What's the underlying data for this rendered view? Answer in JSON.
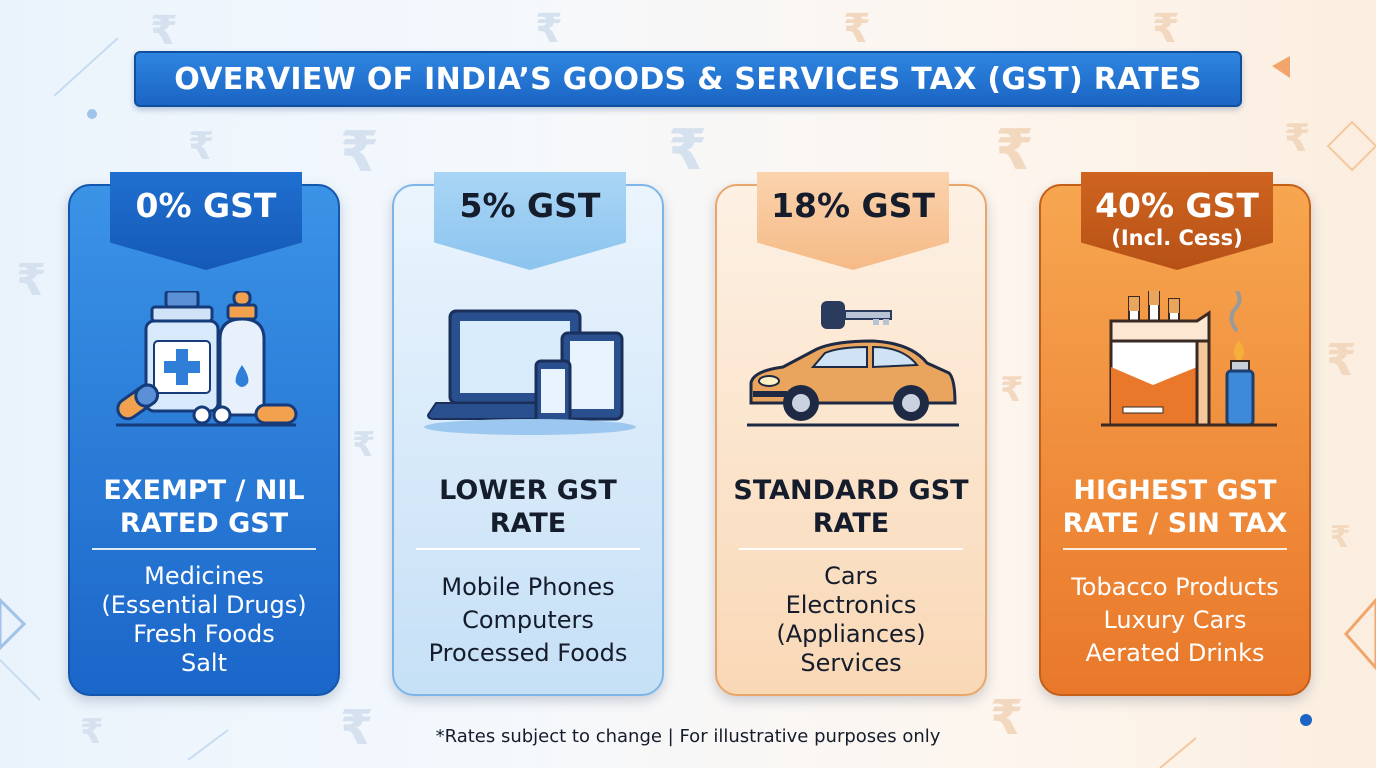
{
  "title": "OVERVIEW OF INDIA’S GOODS & SERVICES TAX (GST) RATES",
  "background_symbol": "₹",
  "colors": {
    "title_blue": "#1b64c4",
    "card_blue": "#1b66c9",
    "card_light_blue": "#c6e0f6",
    "card_peach": "#f9d8b6",
    "card_orange": "#e9782a"
  },
  "cards": [
    {
      "rate": "0% GST",
      "subrate": "",
      "icon": "medicine-icon",
      "category": "EXEMPT / NIL RATED GST",
      "items": [
        "Medicines",
        "(Essential Drugs)",
        "Fresh Foods",
        "Salt"
      ]
    },
    {
      "rate": "5% GST",
      "subrate": "",
      "icon": "devices-icon",
      "category": "LOWER GST RATE",
      "items": [
        "Mobile Phones",
        "Computers",
        "Processed Foods"
      ]
    },
    {
      "rate": "18% GST",
      "subrate": "",
      "icon": "car-icon",
      "category": "STANDARD GST RATE",
      "items": [
        "Cars",
        "Electronics",
        "(Appliances)",
        "Services"
      ]
    },
    {
      "rate": "40% GST",
      "subrate": "(Incl. Cess)",
      "icon": "cigarettes-icon",
      "category": "HIGHEST GST RATE / SIN TAX",
      "items": [
        "Tobacco Products",
        "Luxury Cars",
        "Aerated Drinks"
      ]
    }
  ],
  "footnote": "*Rates subject to change | For illustrative purposes only"
}
